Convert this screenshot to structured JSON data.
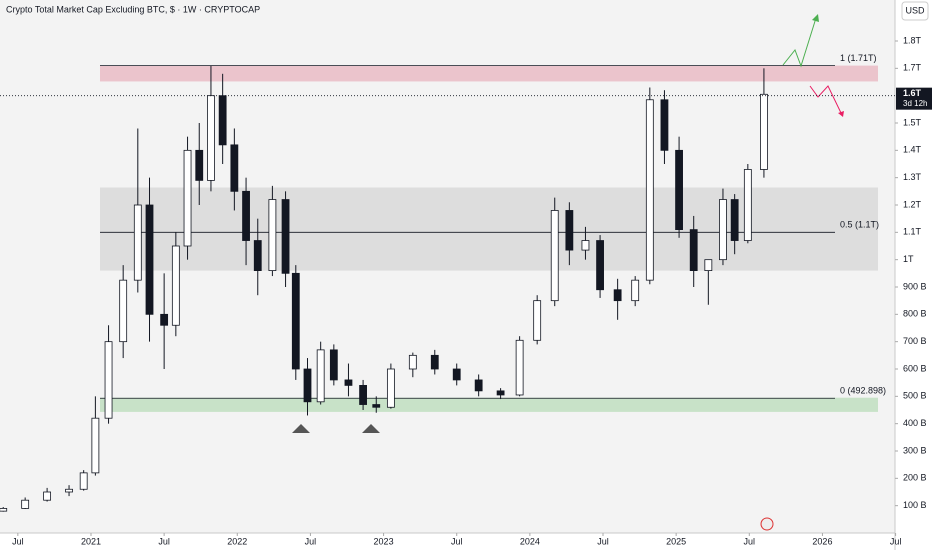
{
  "chart_data": {
    "type": "candlestick",
    "title": "Crypto Total Market Cap Excluding BTC, $ · 1W · CRYPTOCAP",
    "currency": "USD",
    "x": [
      2020.4,
      2020.55,
      2020.7,
      2020.85,
      2020.95,
      2021.03,
      2021.12,
      2021.22,
      2021.32,
      2021.4,
      2021.5,
      2021.58,
      2021.66,
      2021.74,
      2021.82,
      2021.9,
      2021.98,
      2022.06,
      2022.14,
      2022.24,
      2022.33,
      2022.4,
      2022.48,
      2022.57,
      2022.66,
      2022.76,
      2022.86,
      2022.95,
      2023.05,
      2023.2,
      2023.35,
      2023.5,
      2023.65,
      2023.8,
      2023.93,
      2024.05,
      2024.17,
      2024.27,
      2024.38,
      2024.48,
      2024.6,
      2024.72,
      2024.82,
      2024.92,
      2025.02,
      2025.12,
      2025.22,
      2025.32,
      2025.4,
      2025.49,
      2025.6
    ],
    "open": [
      80,
      90,
      120,
      150,
      160,
      220,
      420,
      700,
      925,
      1200,
      800,
      760,
      1050,
      1400,
      1290,
      1600,
      1420,
      1250,
      1070,
      960,
      1220,
      950,
      600,
      480,
      670,
      560,
      540,
      470,
      460,
      600,
      650,
      600,
      560,
      520,
      505,
      705,
      850,
      1180,
      1035,
      1070,
      890,
      850,
      925,
      1585,
      1400,
      1110,
      960,
      1000,
      1220,
      1070,
      1330
    ],
    "high": [
      95,
      130,
      165,
      175,
      230,
      500,
      760,
      980,
      1480,
      1300,
      950,
      1100,
      1450,
      1500,
      1710,
      1680,
      1480,
      1300,
      1150,
      1270,
      1250,
      980,
      640,
      700,
      690,
      620,
      560,
      500,
      620,
      660,
      670,
      620,
      580,
      530,
      720,
      870,
      1227,
      1210,
      1120,
      1090,
      930,
      940,
      1630,
      1620,
      1450,
      1160,
      1000,
      1260,
      1240,
      1350,
      1700
    ],
    "low": [
      78,
      88,
      115,
      135,
      155,
      210,
      400,
      640,
      880,
      700,
      600,
      720,
      1000,
      1200,
      1250,
      1350,
      1180,
      980,
      870,
      940,
      900,
      560,
      430,
      470,
      540,
      500,
      450,
      440,
      455,
      570,
      580,
      540,
      500,
      490,
      500,
      690,
      830,
      980,
      1000,
      860,
      780,
      830,
      910,
      1350,
      1080,
      900,
      835,
      980,
      1020,
      1060,
      1300
    ],
    "close": [
      90,
      120,
      150,
      160,
      220,
      420,
      700,
      925,
      1200,
      800,
      760,
      1050,
      1400,
      1290,
      1600,
      1420,
      1250,
      1070,
      960,
      1220,
      950,
      600,
      480,
      670,
      560,
      540,
      470,
      460,
      600,
      650,
      600,
      560,
      520,
      505,
      705,
      850,
      1180,
      1035,
      1070,
      890,
      850,
      925,
      1585,
      1400,
      1110,
      960,
      1000,
      1220,
      1070,
      1330,
      1605
    ],
    "up_color": "#ffffff",
    "down_color": "#131722",
    "xlim": [
      2020.378,
      2026.496
    ],
    "ylim": [
      0,
      1950
    ],
    "xticks": [
      {
        "value": 2020.5,
        "label": "Jul"
      },
      {
        "value": 2021,
        "label": "2021"
      },
      {
        "value": 2021.5,
        "label": "Jul"
      },
      {
        "value": 2022,
        "label": "2022"
      },
      {
        "value": 2022.5,
        "label": "Jul"
      },
      {
        "value": 2023,
        "label": "2023"
      },
      {
        "value": 2023.5,
        "label": "Jul"
      },
      {
        "value": 2024,
        "label": "2024"
      },
      {
        "value": 2024.5,
        "label": "Jul"
      },
      {
        "value": 2025,
        "label": "2025"
      },
      {
        "value": 2025.5,
        "label": "Jul"
      },
      {
        "value": 2026,
        "label": "2026"
      },
      {
        "value": 2026.5,
        "label": "Jul"
      }
    ],
    "yticks": [
      {
        "value": 100,
        "label": "100 B"
      },
      {
        "value": 200,
        "label": "200 B"
      },
      {
        "value": 300,
        "label": "300 B"
      },
      {
        "value": 400,
        "label": "400 B"
      },
      {
        "value": 500,
        "label": "500 B"
      },
      {
        "value": 600,
        "label": "600 B"
      },
      {
        "value": 700,
        "label": "700 B"
      },
      {
        "value": 800,
        "label": "800 B"
      },
      {
        "value": 900,
        "label": "900 B"
      },
      {
        "value": 1000,
        "label": "1T"
      },
      {
        "value": 1100,
        "label": "1.1T"
      },
      {
        "value": 1200,
        "label": "1.2T"
      },
      {
        "value": 1300,
        "label": "1.3T"
      },
      {
        "value": 1400,
        "label": "1.4T"
      },
      {
        "value": 1500,
        "label": "1.5T"
      },
      {
        "value": 1700,
        "label": "1.7T"
      },
      {
        "value": 1800,
        "label": "1.8T"
      }
    ],
    "zones": [
      {
        "from": 1652,
        "to": 1710,
        "color": "#e8b4bf"
      },
      {
        "from": 960,
        "to": 1264,
        "color": "#d6d6d6"
      },
      {
        "from": 443,
        "to": 495,
        "color": "#b9dcb9"
      }
    ],
    "levels": [
      {
        "value": 1710,
        "label": "1 (1.71T)"
      },
      {
        "value": 1100,
        "label": "0.5 (1.1T)"
      },
      {
        "value": 492.898,
        "label": "0 (492.898)"
      }
    ],
    "current_price": {
      "value": 1600,
      "label": "1.6T",
      "countdown": "3d 12h"
    }
  }
}
